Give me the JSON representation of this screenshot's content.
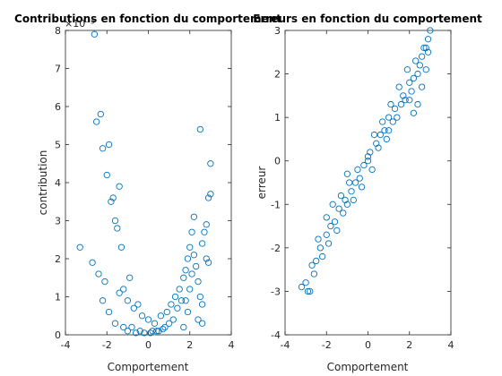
{
  "colors": {
    "marker": "#0072BD",
    "axis": "#262626",
    "background": "#ffffff"
  },
  "chart_data": [
    {
      "type": "scatter",
      "title": "Contributions en fonction du comportement",
      "xlabel": "Comportement",
      "ylabel": "contribution",
      "exponent_label": "×10⁻³",
      "xlim": [
        -4,
        4
      ],
      "ylim": [
        0,
        8
      ],
      "xticks": [
        -4,
        -2,
        0,
        2,
        4
      ],
      "yticks": [
        0,
        1,
        2,
        3,
        4,
        5,
        6,
        7,
        8
      ],
      "grid": false,
      "series": [
        {
          "marker": "circle",
          "x": [
            -2.6,
            -2.3,
            -2.5,
            -2.2,
            -1.9,
            -2.0,
            -1.8,
            -1.7,
            -1.6,
            -1.4,
            -1.5,
            -1.3,
            -3.3,
            -2.7,
            -2.4,
            -2.1,
            -1.2,
            -1.0,
            -0.9,
            -0.7,
            -0.5,
            -0.3,
            0.0,
            0.3,
            0.6,
            0.9,
            1.1,
            1.3,
            1.5,
            1.7,
            1.8,
            1.9,
            2.0,
            2.1,
            2.2,
            2.3,
            2.4,
            2.5,
            2.6,
            2.7,
            2.8,
            2.9,
            3.0,
            2.5,
            2.8,
            3.0,
            2.6,
            2.9,
            2.2,
            2.0,
            1.9,
            2.4,
            2.6,
            1.7,
            1.6,
            -1.6,
            -1.2,
            -0.8,
            -0.4,
            0.2,
            0.5,
            0.8,
            1.2,
            -1.9,
            -1.0,
            -0.6,
            0.1,
            0.4,
            0.7,
            1.0,
            -2.2,
            -1.4,
            1.4,
            1.8,
            2.1,
            -0.2
          ],
          "y": [
            7.9,
            5.8,
            5.6,
            4.9,
            5.0,
            4.2,
            3.5,
            3.6,
            3.0,
            3.9,
            2.8,
            2.3,
            2.3,
            1.9,
            1.6,
            1.4,
            1.2,
            0.9,
            1.5,
            0.7,
            0.8,
            0.5,
            0.4,
            0.3,
            0.5,
            0.6,
            0.8,
            1.0,
            1.2,
            1.5,
            1.7,
            2.0,
            2.3,
            2.7,
            2.1,
            1.8,
            1.4,
            1.0,
            2.4,
            2.7,
            2.0,
            3.6,
            4.5,
            5.4,
            2.9,
            3.7,
            0.8,
            1.9,
            3.1,
            1.2,
            0.6,
            0.4,
            0.3,
            0.2,
            0.9,
            0.3,
            0.2,
            0.2,
            0.1,
            0.1,
            0.1,
            0.2,
            0.4,
            0.6,
            0.1,
            0.05,
            0.05,
            0.1,
            0.15,
            0.3,
            0.9,
            1.1,
            0.7,
            0.9,
            1.6,
            0.05
          ]
        }
      ]
    },
    {
      "type": "scatter",
      "title": "Erreurs en fonction du comportement",
      "xlabel": "Comportement",
      "ylabel": "erreur",
      "xlim": [
        -4,
        4
      ],
      "ylim": [
        -4,
        3
      ],
      "xticks": [
        -4,
        -2,
        0,
        2,
        4
      ],
      "yticks": [
        -4,
        -3,
        -2,
        -1,
        0,
        1,
        2,
        3
      ],
      "grid": false,
      "series": [
        {
          "marker": "circle",
          "x": [
            -3.2,
            -3.0,
            -2.8,
            -2.7,
            -2.6,
            -2.5,
            -2.3,
            -2.2,
            -2.0,
            -1.9,
            -1.8,
            -1.6,
            -1.5,
            -1.4,
            -1.2,
            -1.1,
            -1.0,
            -0.8,
            -0.7,
            -0.6,
            -0.4,
            -0.3,
            -0.2,
            0.0,
            0.1,
            0.2,
            0.4,
            0.5,
            0.6,
            0.8,
            0.9,
            1.0,
            1.2,
            1.3,
            1.4,
            1.6,
            1.7,
            1.8,
            2.0,
            2.1,
            2.2,
            2.4,
            2.5,
            2.6,
            2.8,
            2.9,
            3.0,
            2.2,
            2.4,
            2.6,
            2.8,
            -2.4,
            -2.0,
            -1.7,
            -1.3,
            -0.9,
            -0.5,
            0.3,
            0.7,
            1.1,
            1.5,
            1.9,
            2.3,
            2.7,
            -1.0,
            0.0,
            1.0,
            -2.9,
            2.0,
            2.9
          ],
          "y": [
            -2.9,
            -2.8,
            -3.0,
            -2.4,
            -2.6,
            -2.3,
            -2.0,
            -2.2,
            -1.7,
            -1.9,
            -1.5,
            -1.4,
            -1.6,
            -1.1,
            -1.2,
            -0.9,
            -1.0,
            -0.7,
            -0.9,
            -0.5,
            -0.4,
            -0.6,
            -0.1,
            0.0,
            0.2,
            -0.2,
            0.4,
            0.3,
            0.6,
            0.7,
            0.5,
            1.0,
            0.9,
            1.2,
            1.0,
            1.3,
            1.5,
            1.4,
            1.8,
            1.6,
            1.9,
            2.0,
            2.2,
            2.4,
            2.1,
            2.5,
            3.0,
            1.1,
            1.3,
            1.7,
            2.6,
            -1.8,
            -1.3,
            -1.0,
            -0.8,
            -0.5,
            -0.2,
            0.6,
            0.9,
            1.3,
            1.7,
            2.1,
            2.3,
            2.6,
            -0.3,
            0.1,
            0.7,
            -3.0,
            1.4,
            2.8
          ]
        }
      ]
    }
  ]
}
